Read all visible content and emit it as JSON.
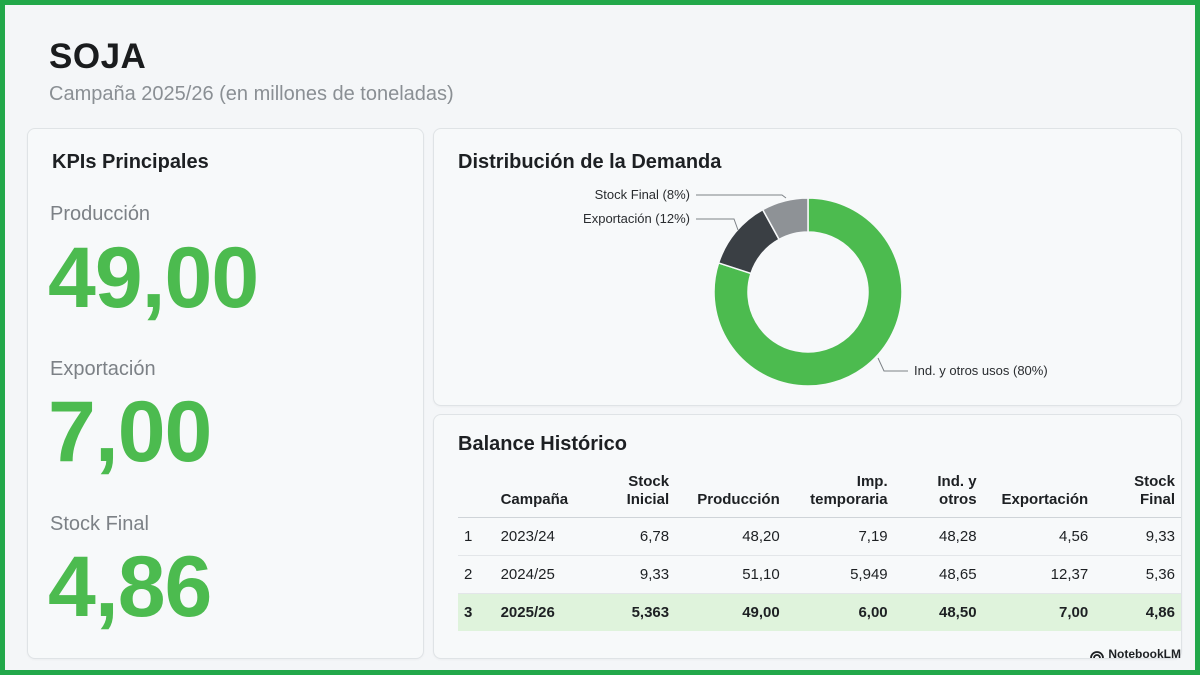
{
  "header": {
    "title": "SOJA",
    "subtitle": "Campaña 2025/26 (en millones de toneladas)"
  },
  "kpis": {
    "title": "KPIs Principales",
    "items": [
      {
        "label": "Producción",
        "value": "49,00"
      },
      {
        "label": "Exportación",
        "value": "7,00"
      },
      {
        "label": "Stock Final",
        "value": "4,86"
      }
    ]
  },
  "colors": {
    "accent": "#4cbb4f",
    "export": "#3a3f44",
    "stock": "#8e9296",
    "frame": "#22a84a"
  },
  "chart_data": [
    {
      "type": "pie",
      "title": "Distribución de la Demanda",
      "slices": [
        {
          "name": "Ind. y otros usos",
          "value": 80,
          "label": "Ind. y otros usos (80%)"
        },
        {
          "name": "Exportación",
          "value": 12,
          "label": "Exportación (12%)"
        },
        {
          "name": "Stock Final",
          "value": 8,
          "label": "Stock Final (8%)"
        }
      ]
    },
    {
      "type": "table",
      "title": "Balance Histórico",
      "columns": [
        "",
        "Campaña",
        "Stock\nInicial",
        "Producción",
        "Imp.\ntemporaria",
        "Ind. y\notros",
        "Exportación",
        "Stock\nFinal"
      ],
      "rows": [
        [
          "1",
          "2023/24",
          "6,78",
          "48,20",
          "7,19",
          "48,28",
          "4,56",
          "9,33"
        ],
        [
          "2",
          "2024/25",
          "9,33",
          "51,10",
          "5,949",
          "48,65",
          "12,37",
          "5,36"
        ],
        [
          "3",
          "2025/26",
          "5,363",
          "49,00",
          "6,00",
          "48,50",
          "7,00",
          "4,86"
        ]
      ],
      "highlight_row": 2
    }
  ],
  "brand": {
    "name": "NotebookLM",
    "icon": "notebooklm-logo-icon"
  }
}
